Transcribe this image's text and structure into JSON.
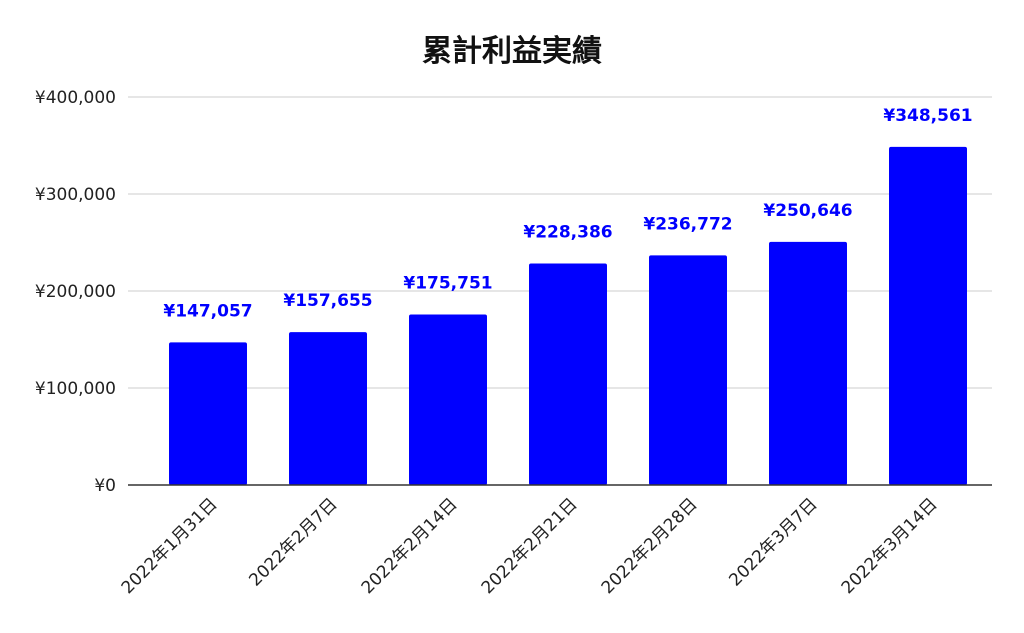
{
  "chart_data": {
    "type": "bar",
    "title": "累計利益実績",
    "categories": [
      "2022年1月31日",
      "2022年2月7日",
      "2022年2月14日",
      "2022年2月21日",
      "2022年2月28日",
      "2022年3月7日",
      "2022年3月14日"
    ],
    "values": [
      147057,
      157655,
      175751,
      228386,
      236772,
      250646,
      348561
    ],
    "data_labels": [
      "¥147,057",
      "¥157,655",
      "¥175,751",
      "¥228,386",
      "¥236,772",
      "¥250,646",
      "¥348,561"
    ],
    "y_ticks": [
      0,
      100000,
      200000,
      300000,
      400000
    ],
    "y_tick_labels": [
      "¥0",
      "¥100,000",
      "¥200,000",
      "¥300,000",
      "¥400,000"
    ],
    "ylim": [
      0,
      400000
    ],
    "grid": true,
    "legend": "none",
    "bar_color": "#0000ff",
    "label_color": "#0000ff",
    "xlabel": "",
    "ylabel": ""
  }
}
